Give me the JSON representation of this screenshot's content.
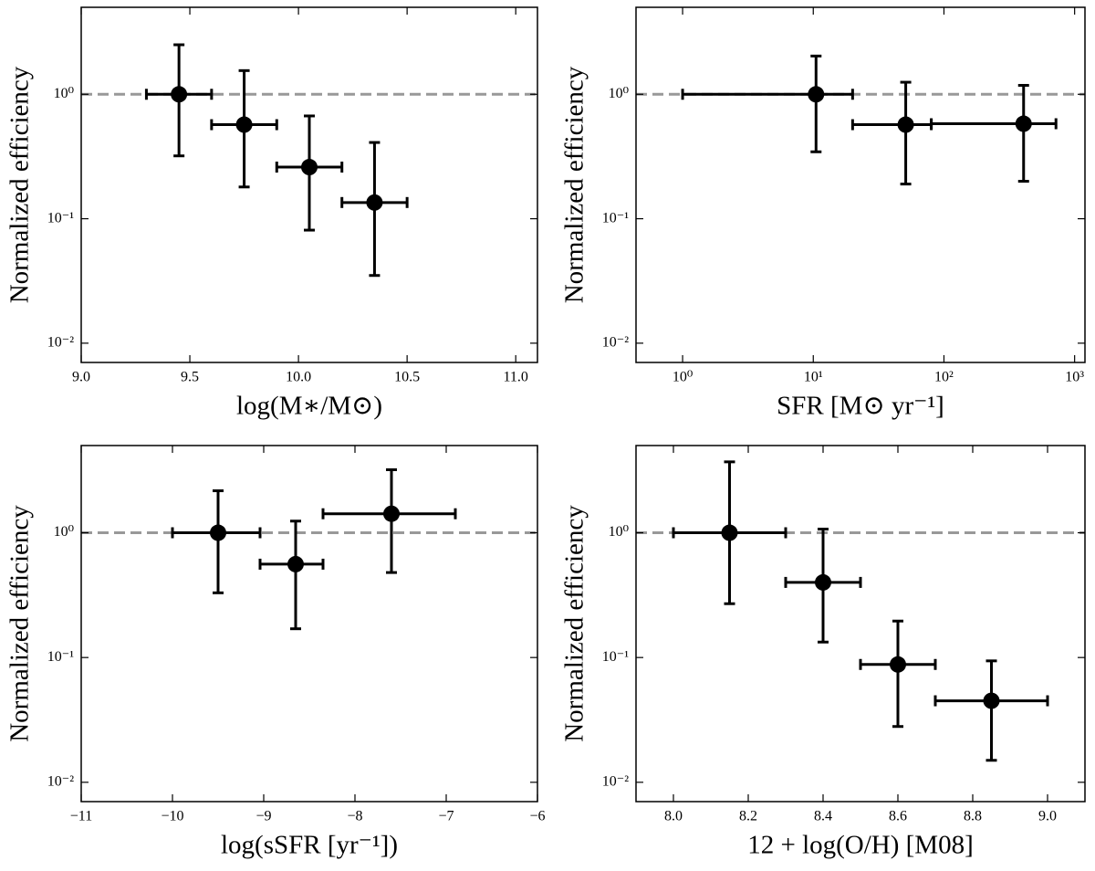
{
  "chart_data": [
    {
      "type": "scatter",
      "xlabel": "log(M∗/M⊙)",
      "ylabel": "Normalized efficiency",
      "x": [
        9.45,
        9.75,
        10.05,
        10.35
      ],
      "values": [
        1.0,
        0.57,
        0.26,
        0.135
      ],
      "x_low": [
        9.3,
        9.6,
        9.9,
        10.2
      ],
      "x_high": [
        9.6,
        9.9,
        10.2,
        10.5
      ],
      "y_low": [
        0.32,
        0.18,
        0.081,
        0.035
      ],
      "y_high": [
        2.5,
        1.55,
        0.67,
        0.41
      ],
      "color": "#000000",
      "xscale": "linear",
      "yscale": "log",
      "xlim": [
        9.0,
        11.1
      ],
      "xticks": [
        {
          "value": 9,
          "label": "9.0"
        },
        9.5,
        {
          "value": 10,
          "label": "10.0"
        },
        10.5,
        {
          "value": 11,
          "label": "11.0"
        }
      ],
      "ylim": [
        0.007,
        5
      ],
      "yticks": [
        {
          "value": 0.01,
          "label": "10⁻²"
        },
        {
          "value": 0.1,
          "label": "10⁻¹"
        },
        {
          "value": 1,
          "label": "10⁰"
        }
      ],
      "hline": 1,
      "hline_color": "#999999"
    },
    {
      "type": "scatter",
      "xlabel": "SFR [M⊙ yr⁻¹]",
      "ylabel": "Normalized efficiency",
      "x": [
        10.5,
        51,
        407
      ],
      "values": [
        1.0,
        0.57,
        0.58
      ],
      "x_low": [
        1,
        20,
        80
      ],
      "x_high": [
        20,
        80,
        720
      ],
      "y_low": [
        0.345,
        0.19,
        0.2
      ],
      "y_high": [
        2.03,
        1.25,
        1.18
      ],
      "color": "#000000",
      "xscale": "log",
      "yscale": "log",
      "xlim": [
        0.44,
        1200
      ],
      "xticks": [
        {
          "value": 1,
          "label": "10⁰"
        },
        {
          "value": 10,
          "label": "10¹"
        },
        {
          "value": 100,
          "label": "10²"
        },
        {
          "value": 1000,
          "label": "10³"
        }
      ],
      "ylim": [
        0.007,
        5
      ],
      "yticks": [
        {
          "value": 0.01,
          "label": "10⁻²"
        },
        {
          "value": 0.1,
          "label": "10⁻¹"
        },
        {
          "value": 1,
          "label": "10⁰"
        }
      ],
      "hline": 1,
      "hline_color": "#999999"
    },
    {
      "type": "scatter",
      "xlabel": "log(sSFR [yr⁻¹])",
      "ylabel": "Normalized efficiency",
      "x": [
        -9.5,
        -8.65,
        -7.6
      ],
      "values": [
        1.0,
        0.56,
        1.42
      ],
      "x_low": [
        -10,
        -9.04,
        -8.35
      ],
      "x_high": [
        -9.04,
        -8.35,
        -6.9
      ],
      "y_low": [
        0.33,
        0.17,
        0.48
      ],
      "y_high": [
        2.17,
        1.24,
        3.2
      ],
      "color": "#000000",
      "xscale": "linear",
      "yscale": "log",
      "xlim": [
        -11,
        -6
      ],
      "xticks": [
        {
          "value": -11,
          "label": "−11"
        },
        {
          "value": -10,
          "label": "−10"
        },
        {
          "value": -9,
          "label": "−9"
        },
        {
          "value": -8,
          "label": "−8"
        },
        {
          "value": -7,
          "label": "−7"
        },
        {
          "value": -6,
          "label": "−6"
        }
      ],
      "ylim": [
        0.007,
        5
      ],
      "yticks": [
        {
          "value": 0.01,
          "label": "10⁻²"
        },
        {
          "value": 0.1,
          "label": "10⁻¹"
        },
        {
          "value": 1,
          "label": "10⁰"
        }
      ],
      "hline": 1,
      "hline_color": "#999999"
    },
    {
      "type": "scatter",
      "xlabel": "12 + log(O/H) [M08]",
      "ylabel": "Normalized efficiency",
      "x": [
        8.15,
        8.4,
        8.6,
        8.85
      ],
      "values": [
        1.0,
        0.4,
        0.088,
        0.045
      ],
      "x_low": [
        8.0,
        8.3,
        8.5,
        8.7
      ],
      "x_high": [
        8.3,
        8.5,
        8.7,
        9.0
      ],
      "y_low": [
        0.27,
        0.133,
        0.028,
        0.015
      ],
      "y_high": [
        3.7,
        1.07,
        0.196,
        0.094
      ],
      "color": "#000000",
      "xscale": "linear",
      "yscale": "log",
      "xlim": [
        7.9,
        9.1
      ],
      "xticks": [
        {
          "value": 8,
          "label": "8.0"
        },
        8.2,
        8.4,
        8.6,
        8.8,
        {
          "value": 9,
          "label": "9.0"
        }
      ],
      "ylim": [
        0.007,
        5
      ],
      "yticks": [
        {
          "value": 0.01,
          "label": "10⁻²"
        },
        {
          "value": 0.1,
          "label": "10⁻¹"
        },
        {
          "value": 1,
          "label": "10⁰"
        }
      ],
      "hline": 1,
      "hline_color": "#999999"
    }
  ]
}
